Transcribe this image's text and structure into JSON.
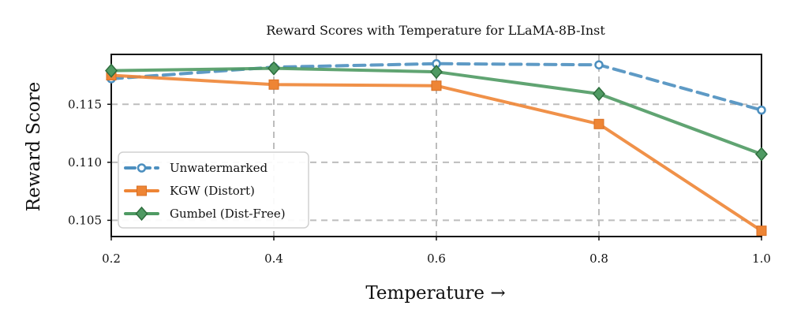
{
  "chart_data": {
    "type": "line",
    "title": "Reward Scores with Temperature for LLaMA-8B-Inst",
    "xlabel": "Temperature →",
    "ylabel": "Reward Score",
    "x": [
      0.2,
      0.4,
      0.6,
      0.8,
      1.0
    ],
    "xticks": [
      "0.2",
      "0.4",
      "0.6",
      "0.8",
      "1.0"
    ],
    "yticks": [
      {
        "value": 0.105,
        "label": "0.105"
      },
      {
        "value": 0.11,
        "label": "0.110"
      },
      {
        "value": 0.115,
        "label": "0.115"
      }
    ],
    "xlim": [
      0.2,
      1.0
    ],
    "ylim": [
      0.1036,
      0.1193
    ],
    "grid": true,
    "legend_position": "bottom-left",
    "series": [
      {
        "name": "Unwatermarked",
        "values": [
          0.1172,
          0.1182,
          0.1185,
          0.1184,
          0.1145
        ],
        "color": "#4C8FBF",
        "marker": "hollow-circle",
        "linestyle": "dashed"
      },
      {
        "name": "KGW (Distort)",
        "values": [
          0.1175,
          0.1167,
          0.1166,
          0.1133,
          0.1041
        ],
        "color": "#EE8535",
        "marker": "square",
        "linestyle": "solid"
      },
      {
        "name": "Gumbel (Dist-Free)",
        "values": [
          0.1179,
          0.1181,
          0.1178,
          0.1159,
          0.1107
        ],
        "color": "#4F9A63",
        "marker": "diamond",
        "linestyle": "solid"
      }
    ]
  }
}
